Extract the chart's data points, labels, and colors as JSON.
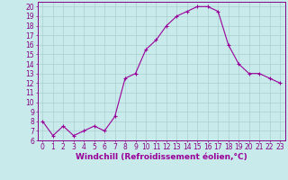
{
  "x": [
    0,
    1,
    2,
    3,
    4,
    5,
    6,
    7,
    8,
    9,
    10,
    11,
    12,
    13,
    14,
    15,
    16,
    17,
    18,
    19,
    20,
    21,
    22,
    23
  ],
  "y": [
    8,
    6.5,
    7.5,
    6.5,
    7,
    7.5,
    7,
    8.5,
    12.5,
    13,
    15.5,
    16.5,
    18,
    19,
    19.5,
    20,
    20,
    19.5,
    16,
    14,
    13,
    13,
    12.5,
    12
  ],
  "line_color": "#990099",
  "marker": "+",
  "marker_color": "#990099",
  "bg_color": "#c8eaea",
  "grid_color": "#aacece",
  "xlabel": "Windchill (Refroidissement éolien,°C)",
  "xlabel_color": "#990099",
  "xlim": [
    -0.5,
    23.5
  ],
  "ylim": [
    6,
    20.5
  ],
  "yticks": [
    6,
    7,
    8,
    9,
    10,
    11,
    12,
    13,
    14,
    15,
    16,
    17,
    18,
    19,
    20
  ],
  "xticks": [
    0,
    1,
    2,
    3,
    4,
    5,
    6,
    7,
    8,
    9,
    10,
    11,
    12,
    13,
    14,
    15,
    16,
    17,
    18,
    19,
    20,
    21,
    22,
    23
  ],
  "tick_label_size": 5.5,
  "xlabel_size": 6.5,
  "axis_color": "#880088"
}
